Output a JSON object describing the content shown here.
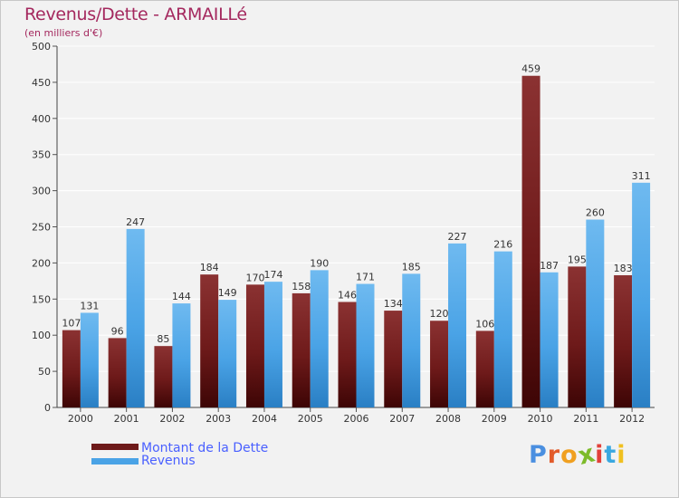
{
  "header": {
    "title": "Revenus/Dette - ARMAILLé",
    "subtitle": "(en milliers d'€)"
  },
  "legend": {
    "debt_label": "Montant de la Dette",
    "revenue_label": "Revenus"
  },
  "logo": {
    "text": "Proxiti",
    "letters": [
      "P",
      "r",
      "o",
      "x",
      "i",
      "t",
      "i"
    ],
    "colors": [
      "#4a8fe0",
      "#e25b2a",
      "#f0a020",
      "#7dbb2a",
      "#e2403a",
      "#3aa8e0",
      "#f0c020"
    ]
  },
  "colors": {
    "debt": "#6e1a1a",
    "debt_light": "#8b3232",
    "revenue": "#4aa3e6",
    "revenue_light": "#6fbaf0",
    "title": "#a4285e",
    "legend_text": "#4a60ff"
  },
  "chart_data": {
    "type": "bar",
    "categories": [
      "2000",
      "2001",
      "2002",
      "2003",
      "2004",
      "2005",
      "2006",
      "2007",
      "2008",
      "2009",
      "2010",
      "2011",
      "2012"
    ],
    "series": [
      {
        "name": "Montant de la Dette",
        "values": [
          107,
          96,
          85,
          184,
          170,
          158,
          146,
          134,
          120,
          106,
          459,
          195,
          183
        ]
      },
      {
        "name": "Revenus",
        "values": [
          131,
          247,
          144,
          149,
          174,
          190,
          171,
          185,
          227,
          216,
          187,
          260,
          311
        ]
      }
    ],
    "title": "Revenus/Dette - ARMAILLé",
    "subtitle": "(en milliers d'€)",
    "xlabel": "",
    "ylabel": "",
    "ylim": [
      0,
      500
    ],
    "yticks": [
      0,
      50,
      100,
      150,
      200,
      250,
      300,
      350,
      400,
      450,
      500
    ],
    "grid": true,
    "legend_position": "bottom-left"
  }
}
